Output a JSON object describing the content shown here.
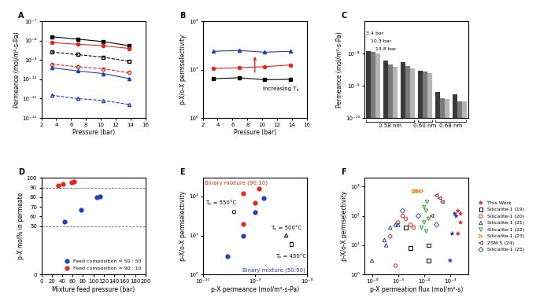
{
  "chart_data": [
    {
      "type": "line",
      "title": "A",
      "x_label": "Pressure (bar)",
      "y_label": "Permeance (mol/m²-s-Pa)",
      "log": "y",
      "xlim": [
        2,
        16
      ],
      "xticks": [
        2,
        4,
        6,
        8,
        10,
        12,
        14,
        16
      ],
      "ylim": [
        1e-12,
        1e-07
      ],
      "yticks": [
        {
          "value": 1e-12,
          "label": "10⁻¹²"
        },
        {
          "value": 1e-11,
          "label": "10⁻¹¹"
        },
        {
          "value": 1e-10,
          "label": "10⁻¹⁰"
        },
        {
          "value": 1e-09,
          "label": "10⁻⁹"
        },
        {
          "value": 1e-08,
          "label": "10⁻⁸"
        },
        {
          "value": 1e-07,
          "label": "10⁻⁷"
        }
      ],
      "x": [
        3.4,
        6.9,
        10.3,
        13.8
      ],
      "series": [
        {
          "color": "#000000",
          "marker": "square",
          "line_style": "solid",
          "values": [
            1.6e-08,
            1.2e-08,
            9e-09,
            5.5e-09
          ]
        },
        {
          "color": "#e8251f",
          "marker": "circle",
          "line_style": "solid",
          "values": [
            8e-09,
            6.5e-09,
            5.5e-09,
            4e-09
          ]
        },
        {
          "color": "#000000",
          "marker": "open_square",
          "line_style": "dashed",
          "values": [
            2.6e-09,
            1.9e-09,
            1.4e-09,
            8.5e-10
          ]
        },
        {
          "color": "#e8251f",
          "marker": "open_circle",
          "line_style": "dashed",
          "values": [
            6e-10,
            4.5e-10,
            3.5e-10,
            2.2e-10
          ]
        },
        {
          "color": "#1f3fbf",
          "marker": "triangle",
          "line_style": "solid",
          "values": [
            4e-10,
            2.7e-10,
            2e-10,
            1.1e-10
          ]
        },
        {
          "color": "#1f3fbf",
          "marker": "open_triangle",
          "line_style": "dashed",
          "values": [
            1.5e-11,
            1e-11,
            8e-12,
            5e-12
          ]
        }
      ]
    },
    {
      "type": "line",
      "title": "B",
      "x_label": "Pressure (bar)",
      "y_label": "p-X/o-X permselectivity",
      "log": "y",
      "xlim": [
        2,
        16
      ],
      "xticks": [
        2,
        4,
        6,
        8,
        10,
        12,
        14,
        16
      ],
      "ylim": [
        1,
        100
      ],
      "yticks": [
        {
          "value": 1,
          "label": "10⁰"
        },
        {
          "value": 10,
          "label": "10¹"
        },
        {
          "value": 100,
          "label": "10²"
        }
      ],
      "x": [
        3.4,
        6.9,
        10.3,
        13.8
      ],
      "series": [
        {
          "color": "#1f3fbf",
          "marker": "triangle",
          "line_style": "solid",
          "values": [
            24,
            25,
            23,
            24
          ]
        },
        {
          "color": "#e8251f",
          "marker": "circle",
          "line_style": "solid",
          "values": [
            10.5,
            11,
            11.5,
            12.5
          ]
        },
        {
          "color": "#000000",
          "marker": "square",
          "line_style": "solid",
          "values": [
            6.5,
            6.8,
            6.2,
            6.3
          ]
        }
      ],
      "annotations": [
        "Increasing Tₚ"
      ]
    },
    {
      "type": "bar",
      "title": "C",
      "y_label": "Permeance (mol/m²-s-Pa)",
      "log": "y",
      "ylim": [
        1e-10,
        1e-07
      ],
      "yticks": [
        {
          "value": 1e-10,
          "label": "10⁻¹⁰"
        },
        {
          "value": 1e-09,
          "label": "10⁻⁹"
        },
        {
          "value": 1e-08,
          "label": "10⁻⁸"
        }
      ],
      "categories": [
        null,
        null,
        null,
        null,
        null,
        null
      ],
      "series": [
        {
          "name": "3.4 bar",
          "color": "#3a3a3a",
          "values": [
            1.2e-08,
            6e-09,
            5.5e-09,
            3e-09,
            6.5e-10,
            5.5e-10
          ]
        },
        {
          "name": "10.3 bar",
          "color": "#7a7a7a",
          "values": [
            1.1e-08,
            4.5e-09,
            4e-09,
            2.8e-09,
            4e-10,
            3.3e-10
          ]
        },
        {
          "name": "13.8 bar",
          "color": "#b5b5b5",
          "values": [
            1e-08,
            3.8e-09,
            3.5e-09,
            2.5e-09,
            3.8e-10,
            3.2e-10
          ]
        }
      ],
      "annotations": [
        "0.58 nm",
        "0.60 nm",
        "0.68 nm"
      ]
    },
    {
      "type": "scatter",
      "title": "D",
      "x_label": "Mixture feed pressure (bar)",
      "y_label": "p-X mol% in permeate",
      "xlim": [
        0,
        200
      ],
      "xticks": [
        0,
        20,
        40,
        60,
        80,
        100,
        120,
        140,
        160,
        180,
        200
      ],
      "ylim": [
        0,
        100
      ],
      "yticks": [
        0,
        50,
        60,
        70,
        80,
        90,
        100
      ],
      "reference_values": [
        50,
        90
      ],
      "legend": "lower right",
      "series": [
        {
          "name": "Feed composition = 50 : 50",
          "color": "#1f3fbf",
          "marker": "circle",
          "x": [
            45,
            77,
            107,
            113
          ],
          "values": [
            55,
            67,
            80,
            81
          ]
        },
        {
          "name": "Feed composition = 90 : 10",
          "color": "#e8251f",
          "marker": "circle",
          "x": [
            32,
            42,
            58,
            63
          ],
          "values": [
            92,
            94,
            95,
            96
          ]
        }
      ]
    },
    {
      "type": "scatter",
      "title": "E",
      "x_label": "p-X permeance (mol/m²-s-Pa)",
      "y_label": "p-X/o-X permselectivity",
      "log": true,
      "xlim": [
        1e-10,
        1e-08
      ],
      "xticks": [
        {
          "value": 1e-10,
          "label": "10⁻¹⁰"
        },
        {
          "value": 1e-09,
          "label": "10⁻⁹"
        },
        {
          "value": 1e-08,
          "label": "10⁻⁸"
        }
      ],
      "ylim": [
        1,
        300
      ],
      "yticks": [
        {
          "value": 1,
          "label": "10⁰"
        },
        {
          "value": 10,
          "label": "10¹"
        },
        {
          "value": 100,
          "label": "10²"
        }
      ],
      "series": [
        {
          "color": "#e8251f",
          "marker": "circle",
          "x": [
            6e-10,
            6e-10,
            1e-09,
            1.2e-09
          ],
          "values": [
            20,
            120,
            70,
            160
          ]
        },
        {
          "color": "#1f3fbf",
          "marker": "circle",
          "x": [
            3e-10,
            6e-10,
            1e-09,
            1.5e-09
          ],
          "values": [
            3,
            10,
            40,
            90
          ]
        },
        {
          "color": "#000000",
          "marker": "open_circle",
          "x": [
            4e-10
          ],
          "values": [
            40
          ]
        },
        {
          "color": "#000000",
          "marker": "open_triangle",
          "x": [
            4e-09
          ],
          "values": [
            10
          ]
        },
        {
          "color": "#000000",
          "marker": "open_square",
          "x": [
            5e-09
          ],
          "values": [
            6
          ]
        }
      ],
      "annotations": [
        "Binary mixture (90:10)",
        "Binary mixture (50:50)",
        "Tₚ = 550°C",
        "Tₚ = 500°C",
        "Tₚ = 450°C"
      ]
    },
    {
      "type": "scatter",
      "title": "F",
      "x_label": "p-X permeation flux (mol/m²-s)",
      "y_label": "p-X/o-X permselectivity",
      "log": true,
      "xlim": [
        5e-07,
        0.005
      ],
      "xticks": [
        {
          "value": 1e-06,
          "label": "10⁻⁶"
        },
        {
          "value": 1e-05,
          "label": "10⁻⁵"
        },
        {
          "value": 0.0001,
          "label": "10⁻⁴"
        },
        {
          "value": 0.001,
          "label": "10⁻³"
        }
      ],
      "ylim": [
        1,
        2000
      ],
      "yticks": [
        {
          "value": 1,
          "label": "10⁰"
        },
        {
          "value": 10,
          "label": "10¹"
        },
        {
          "value": 100,
          "label": "10²"
        },
        {
          "value": 1000,
          "label": "10³"
        }
      ],
      "legend": "right",
      "series": [
        {
          "name": "This Work",
          "marker": "star",
          "colors": [
            "#e8251f",
            "#e8251f",
            "#e8251f",
            "#e8251f",
            "#1f3fbf",
            "#1f3fbf",
            "#1f3fbf",
            "#1f3fbf"
          ],
          "x": [
            0.002,
            0.0025,
            0.0025,
            0.002,
            0.0015,
            0.0017,
            0.0012,
            0.001
          ],
          "values": [
            150,
            120,
            60,
            25,
            120,
            100,
            25,
            3
          ]
        },
        {
          "name": "Silicalite-1 (19)",
          "color": "#000000",
          "marker": "open_square",
          "x": [
            2e-05,
            3e-05,
            0.00015,
            0.00015
          ],
          "values": [
            40,
            8,
            10,
            3
          ]
        },
        {
          "name": "Silicalite-1 (20)",
          "color": "#e8251f",
          "marker": "open_circle",
          "x": [
            5e-06,
            8e-06,
            1.5e-05,
            2e-05,
            3e-05,
            4e-05,
            1e-05
          ],
          "values": [
            20,
            2,
            100,
            80,
            50,
            40,
            60
          ]
        },
        {
          "name": "Silicalite-1 (21)",
          "color": "#1f3fbf",
          "marker": "open_triangle",
          "x": [
            1e-06,
            3e-06,
            5e-06,
            8e-06,
            1e-05,
            3.5e-06
          ],
          "values": [
            3,
            15,
            40,
            50,
            50,
            10
          ]
        },
        {
          "name": "Silicalite-1 (22)",
          "color": "#2ca02c",
          "marker": "open_triangle_down",
          "x": [
            0.0001,
            0.00012,
            0.00015,
            0.0001,
            0.00012,
            8e-05,
            0.00013
          ],
          "values": [
            200,
            150,
            80,
            60,
            30,
            40,
            300
          ]
        },
        {
          "name": "Silicalite-1 (23)",
          "color": "#f07f1a",
          "marker": "open_triangle_right",
          "x": [
            4e-05,
            5e-05,
            6e-05,
            8e-05
          ],
          "values": [
            700,
            700,
            700,
            700
          ]
        },
        {
          "name": "ZSM 5 (24)",
          "color": "#7a1f2a",
          "marker": "open_triangle_left",
          "x": [
            0.0003,
            0.0004,
            0.0005,
            0.0002
          ],
          "values": [
            500,
            400,
            300,
            100
          ]
        },
        {
          "name": "Silicalite-1 (25)",
          "color": "#3050c0",
          "marker": "open_diamond",
          "x": [
            1.5e-05,
            0.0003,
            6e-05
          ],
          "values": [
            150,
            50,
            100
          ]
        }
      ]
    }
  ]
}
